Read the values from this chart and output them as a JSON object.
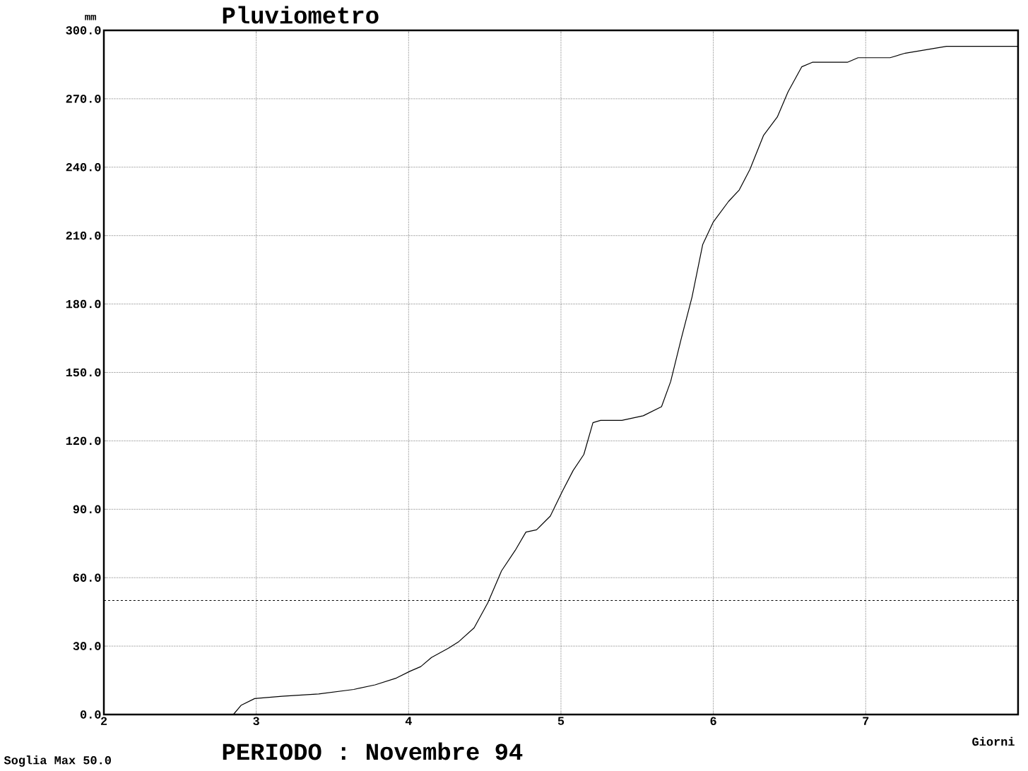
{
  "chart_data": {
    "type": "line",
    "title": "Pluviometro",
    "subtitle": "PERIODO : Novembre 94",
    "xlabel": "Giorni",
    "ylabel": "mm",
    "xlim": [
      2,
      8
    ],
    "xticks": [
      2,
      3,
      4,
      5,
      6,
      7
    ],
    "ylim": [
      0,
      300
    ],
    "yticks": [
      {
        "value": 0,
        "label": "0.0"
      },
      {
        "value": 30,
        "label": "30.0"
      },
      {
        "value": 60,
        "label": "60.0"
      },
      {
        "value": 90,
        "label": "90.0"
      },
      {
        "value": 120,
        "label": "120.0"
      },
      {
        "value": 150,
        "label": "150.0"
      },
      {
        "value": 180,
        "label": "180.0"
      },
      {
        "value": 210,
        "label": "210.0"
      },
      {
        "value": 240,
        "label": "240.0"
      },
      {
        "value": 270,
        "label": "270.0"
      },
      {
        "value": 300,
        "label": "300.0"
      }
    ],
    "grid": true,
    "line_style": "solid",
    "marker": "none",
    "series": [
      {
        "color": "#000000",
        "x": [
          2.85,
          2.9,
          2.99,
          3.17,
          3.41,
          3.64,
          3.78,
          3.92,
          4.01,
          4.08,
          4.15,
          4.26,
          4.33,
          4.43,
          4.52,
          4.61,
          4.7,
          4.77,
          4.84,
          4.93,
          5.01,
          5.08,
          5.15,
          5.21,
          5.26,
          5.4,
          5.54,
          5.66,
          5.72,
          5.79,
          5.86,
          5.93,
          6.0,
          6.1,
          6.17,
          6.24,
          6.33,
          6.42,
          6.49,
          6.58,
          6.65,
          6.88,
          6.95,
          7.16,
          7.26,
          7.44,
          7.53,
          8.0
        ],
        "values": [
          0,
          4,
          7,
          8,
          9,
          11,
          13,
          16,
          19,
          21,
          25,
          29,
          32,
          38,
          49,
          63,
          72,
          80,
          81,
          87,
          98,
          107,
          114,
          128,
          129,
          129,
          131,
          135,
          146,
          165,
          183,
          206,
          216,
          225,
          230,
          239,
          254,
          262,
          273,
          284,
          286,
          286,
          288,
          288,
          290,
          292,
          293,
          293
        ]
      }
    ],
    "ref_lines": [
      {
        "axis": "y",
        "value": 50,
        "line_style": "dashed",
        "color": "#000000"
      }
    ],
    "annotations": [
      "Soglia Max 50.0"
    ]
  }
}
